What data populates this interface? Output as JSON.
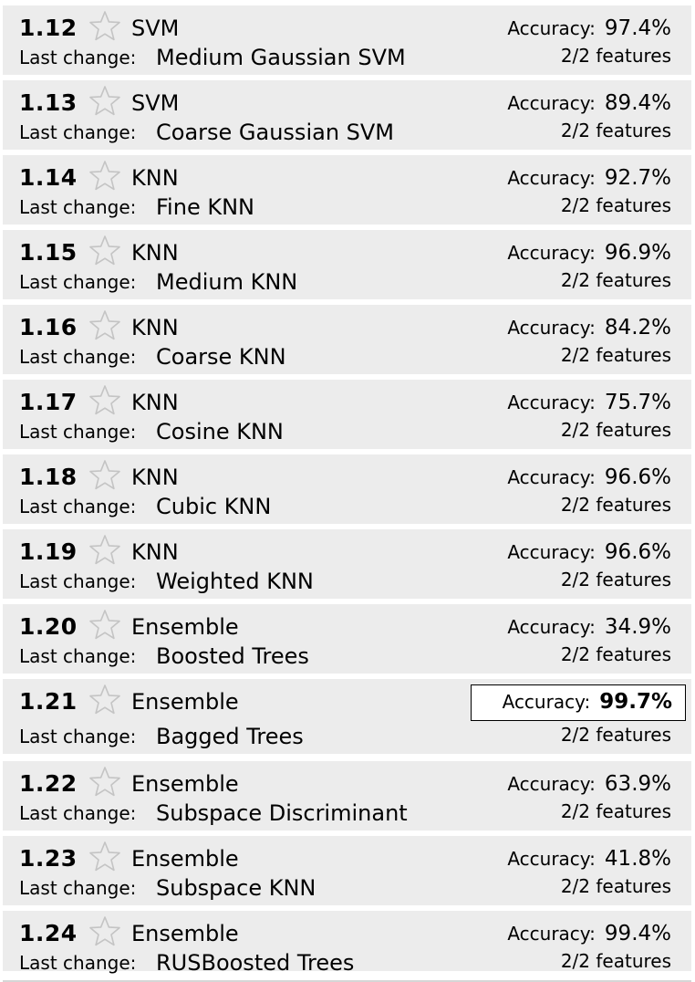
{
  "labels": {
    "last_change": "Last change:",
    "accuracy": "Accuracy:"
  },
  "models": [
    {
      "number": "1.12",
      "type": "SVM",
      "last_change": "Medium Gaussian SVM",
      "accuracy": "97.4%",
      "features": "2/2 features",
      "starred": false
    },
    {
      "number": "1.13",
      "type": "SVM",
      "last_change": "Coarse Gaussian SVM",
      "accuracy": "89.4%",
      "features": "2/2 features",
      "starred": false
    },
    {
      "number": "1.14",
      "type": "KNN",
      "last_change": "Fine KNN",
      "accuracy": "92.7%",
      "features": "2/2 features",
      "starred": false
    },
    {
      "number": "1.15",
      "type": "KNN",
      "last_change": "Medium KNN",
      "accuracy": "96.9%",
      "features": "2/2 features",
      "starred": false
    },
    {
      "number": "1.16",
      "type": "KNN",
      "last_change": "Coarse KNN",
      "accuracy": "84.2%",
      "features": "2/2 features",
      "starred": false
    },
    {
      "number": "1.17",
      "type": "KNN",
      "last_change": "Cosine KNN",
      "accuracy": "75.7%",
      "features": "2/2 features",
      "starred": false
    },
    {
      "number": "1.18",
      "type": "KNN",
      "last_change": "Cubic KNN",
      "accuracy": "96.6%",
      "features": "2/2 features",
      "starred": false
    },
    {
      "number": "1.19",
      "type": "KNN",
      "last_change": "Weighted KNN",
      "accuracy": "96.6%",
      "features": "2/2 features",
      "starred": false
    },
    {
      "number": "1.20",
      "type": "Ensemble",
      "last_change": "Boosted Trees",
      "accuracy": "34.9%",
      "features": "2/2 features",
      "starred": false
    },
    {
      "number": "1.21",
      "type": "Ensemble",
      "last_change": "Bagged Trees",
      "accuracy": "99.7%",
      "features": "2/2 features",
      "starred": false,
      "best": true
    },
    {
      "number": "1.22",
      "type": "Ensemble",
      "last_change": "Subspace Discriminant",
      "accuracy": "63.9%",
      "features": "2/2 features",
      "starred": false
    },
    {
      "number": "1.23",
      "type": "Ensemble",
      "last_change": "Subspace KNN",
      "accuracy": "41.8%",
      "features": "2/2 features",
      "starred": false
    },
    {
      "number": "1.24",
      "type": "Ensemble",
      "last_change": "RUSBoosted Trees",
      "accuracy": "99.4%",
      "features": "2/2 features",
      "starred": false
    }
  ],
  "icons": {
    "star": "star-outline-icon"
  },
  "colors": {
    "row_background": "#ececec",
    "star_stroke": "#c4c4c4",
    "highlight_border": "#000000"
  }
}
